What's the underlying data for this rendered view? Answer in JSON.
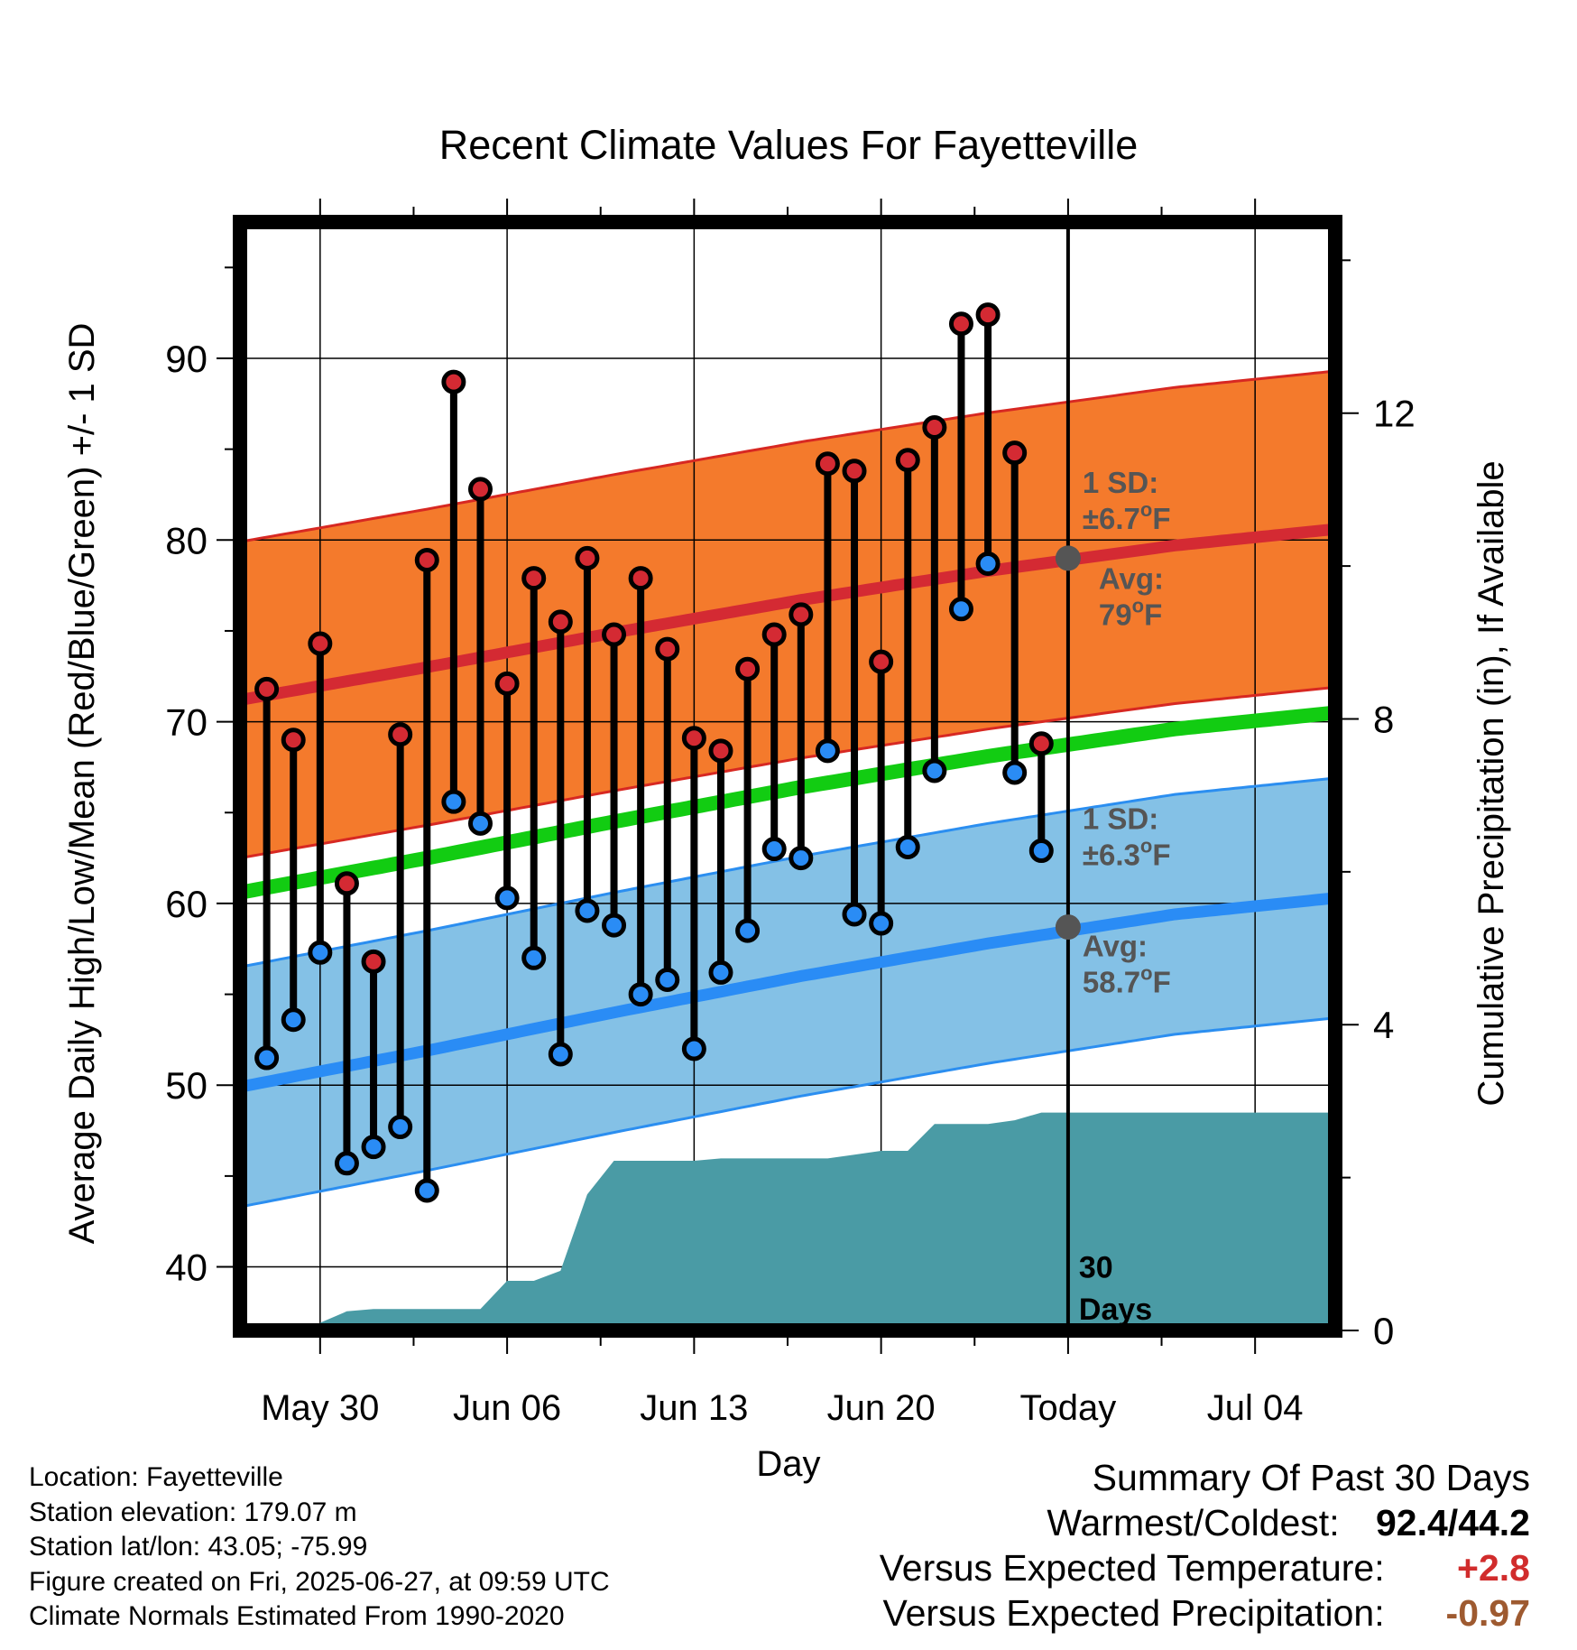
{
  "chart_data": {
    "type": "line",
    "title": "Recent Climate Values For Fayetteville",
    "xlabel": "Day",
    "ylabel": "Average Daily High/Low/Mean (Red/Blue/Green) +/- 1 SD",
    "y2label": "Cumulative Precipitation (in), If Available",
    "xlim": [
      "2025-05-27",
      "2025-07-07"
    ],
    "ylim": [
      36.5,
      97.5
    ],
    "y2lim": [
      0,
      14.5
    ],
    "x_tick_labels": [
      "May 30",
      "Jun 06",
      "Jun 13",
      "Jun 20",
      "Today",
      "Jul 04"
    ],
    "x_tick_dates": [
      "2025-05-30",
      "2025-06-06",
      "2025-06-13",
      "2025-06-20",
      "2025-06-27",
      "2025-07-04"
    ],
    "y_ticks": [
      40,
      50,
      60,
      70,
      80,
      90
    ],
    "y2_ticks": [
      0,
      4,
      8,
      12
    ],
    "grid": true,
    "today": "2025-06-27",
    "today_label": "30 Days",
    "normals": {
      "dates": [
        "2025-05-27",
        "2025-06-03",
        "2025-06-10",
        "2025-06-17",
        "2025-06-24",
        "2025-07-01",
        "2025-07-07"
      ],
      "high_mean": [
        71.2,
        73.0,
        74.9,
        76.7,
        78.3,
        79.7,
        80.6
      ],
      "high_sd": 8.7,
      "low_mean": [
        49.9,
        51.9,
        54.0,
        56.0,
        57.8,
        59.4,
        60.3
      ],
      "low_sd": 6.6,
      "mean": [
        60.6,
        62.5,
        64.5,
        66.4,
        68.1,
        69.6,
        70.5
      ]
    },
    "daily": {
      "dates": [
        "2025-05-28",
        "2025-05-29",
        "2025-05-30",
        "2025-05-31",
        "2025-06-01",
        "2025-06-02",
        "2025-06-03",
        "2025-06-04",
        "2025-06-05",
        "2025-06-06",
        "2025-06-07",
        "2025-06-08",
        "2025-06-09",
        "2025-06-10",
        "2025-06-11",
        "2025-06-12",
        "2025-06-13",
        "2025-06-14",
        "2025-06-15",
        "2025-06-16",
        "2025-06-17",
        "2025-06-18",
        "2025-06-19",
        "2025-06-20",
        "2025-06-21",
        "2025-06-22",
        "2025-06-23",
        "2025-06-24",
        "2025-06-25",
        "2025-06-26"
      ],
      "high": [
        71.8,
        69.0,
        74.3,
        61.1,
        56.8,
        69.3,
        78.9,
        88.7,
        82.8,
        72.1,
        77.9,
        75.5,
        79.0,
        74.8,
        77.9,
        74.0,
        69.1,
        68.4,
        72.9,
        74.8,
        75.9,
        84.2,
        83.8,
        73.3,
        84.4,
        86.2,
        91.9,
        92.4,
        84.8,
        68.8
      ],
      "low": [
        51.5,
        53.6,
        57.3,
        45.7,
        46.6,
        47.7,
        44.2,
        65.6,
        64.4,
        60.3,
        57.0,
        51.7,
        59.6,
        58.8,
        55.0,
        55.8,
        52.0,
        56.2,
        58.5,
        63.0,
        62.5,
        68.4,
        59.4,
        58.9,
        63.1,
        67.3,
        76.2,
        78.7,
        67.2,
        62.9
      ]
    },
    "precip_cumulative": {
      "dates": [
        "2025-05-30",
        "2025-05-31",
        "2025-06-01",
        "2025-06-02",
        "2025-06-03",
        "2025-06-04",
        "2025-06-05",
        "2025-06-06",
        "2025-06-07",
        "2025-06-08",
        "2025-06-09",
        "2025-06-10",
        "2025-06-11",
        "2025-06-12",
        "2025-06-13",
        "2025-06-14",
        "2025-06-15",
        "2025-06-16",
        "2025-06-17",
        "2025-06-18",
        "2025-06-19",
        "2025-06-20",
        "2025-06-21",
        "2025-06-22",
        "2025-06-23",
        "2025-06-24",
        "2025-06-25",
        "2025-06-26",
        "2025-07-07"
      ],
      "values": [
        0.1,
        0.25,
        0.28,
        0.28,
        0.28,
        0.28,
        0.28,
        0.65,
        0.65,
        0.78,
        1.78,
        2.22,
        2.22,
        2.22,
        2.22,
        2.25,
        2.25,
        2.25,
        2.25,
        2.25,
        2.3,
        2.35,
        2.35,
        2.7,
        2.7,
        2.7,
        2.75,
        2.85,
        2.85
      ]
    },
    "annotations": {
      "high_sd": [
        "1 SD:",
        "±6.7°F"
      ],
      "high_avg": [
        "Avg:",
        "79°F"
      ],
      "high_avg_value": 79.0,
      "low_sd": [
        "1 SD:",
        "±6.3°F"
      ],
      "low_avg": [
        "Avg:",
        "58.7°F"
      ],
      "low_avg_value": 58.7
    },
    "colors": {
      "high_band": "#f47a2c",
      "high_edge": "#d72822",
      "high_line": "#d42a33",
      "low_band": "#84c1e6",
      "low_edge": "#2b8ef0",
      "low_line": "#2a8cf5",
      "mean_line": "#12cc12",
      "precip": "#4a9ba5",
      "high_dot": "#d42a33",
      "low_dot": "#2a8cf5",
      "annot": "#555555"
    }
  },
  "info": {
    "location": "Location: Fayetteville",
    "elevation": "Station elevation: 179.07 m",
    "latlon": "Station lat/lon: 43.05; -75.99",
    "created": "Figure created on Fri, 2025-06-27, at 09:59 UTC",
    "normals": "Climate Normals Estimated From 1990-2020"
  },
  "summary": {
    "title": "Summary Of Past 30 Days",
    "warm_label": "Warmest/Coldest:",
    "warm_value": "92.4/44.2",
    "temp_label": "Versus Expected Temperature:",
    "temp_value": "+2.8",
    "temp_color": "#d12c2c",
    "precip_label": "Versus Expected Precipitation:",
    "precip_value": "-0.97",
    "precip_color": "#9e5a30"
  }
}
